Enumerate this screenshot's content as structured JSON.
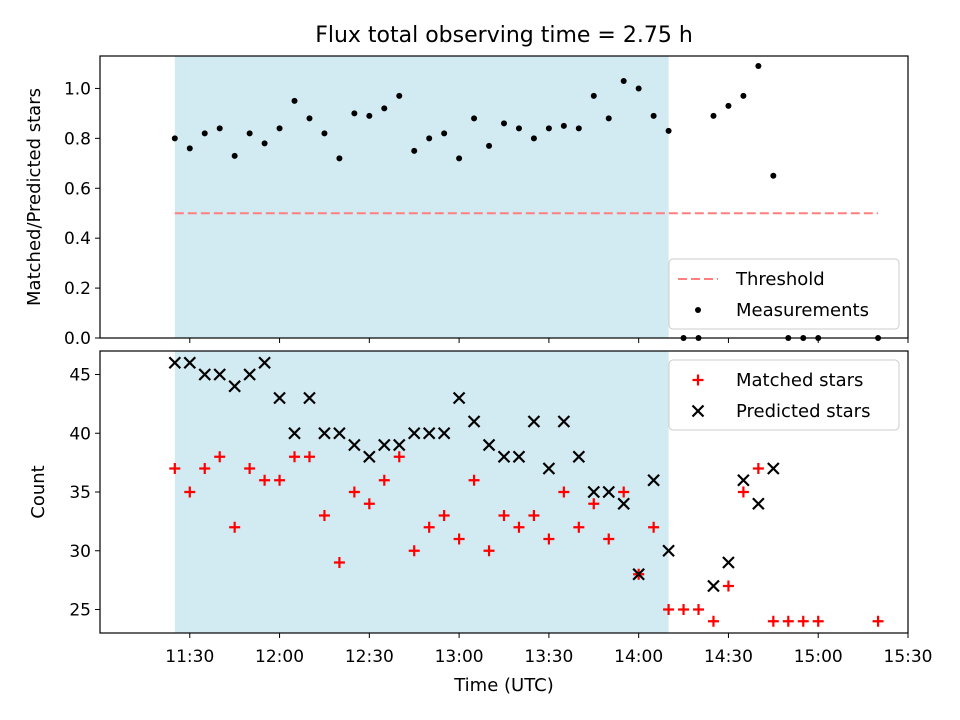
{
  "chart_data": {
    "title": "Flux total observing time = 2.75 h",
    "xlabel": "Time (UTC)",
    "x_ticks": [
      "11:30",
      "12:00",
      "12:30",
      "13:00",
      "13:30",
      "14:00",
      "14:30",
      "15:00",
      "15:30"
    ],
    "shaded_interval": [
      "11:25",
      "14:10"
    ],
    "shade_color": "#add8e6",
    "panels": [
      {
        "type": "scatter",
        "ylabel": "Matched/Predicted stars",
        "ylim": [
          0,
          1.13
        ],
        "y_ticks": [
          "0.0",
          "0.2",
          "0.4",
          "0.6",
          "0.8",
          "1.0"
        ],
        "legend": [
          "Threshold",
          "Measurements"
        ],
        "legend_position": "lower-right",
        "threshold": {
          "name": "Threshold",
          "value": 0.5,
          "x_range": [
            "11:25",
            "15:20"
          ],
          "color": "#ff7f7f"
        },
        "series": [
          {
            "name": "Measurements",
            "marker": "dot",
            "color": "#000000",
            "points": [
              [
                "11:25",
                0.8
              ],
              [
                "11:30",
                0.76
              ],
              [
                "11:35",
                0.82
              ],
              [
                "11:40",
                0.84
              ],
              [
                "11:45",
                0.73
              ],
              [
                "11:50",
                0.82
              ],
              [
                "11:55",
                0.78
              ],
              [
                "12:00",
                0.84
              ],
              [
                "12:05",
                0.95
              ],
              [
                "12:10",
                0.88
              ],
              [
                "12:15",
                0.82
              ],
              [
                "12:20",
                0.72
              ],
              [
                "12:25",
                0.9
              ],
              [
                "12:30",
                0.89
              ],
              [
                "12:35",
                0.92
              ],
              [
                "12:40",
                0.97
              ],
              [
                "12:45",
                0.75
              ],
              [
                "12:50",
                0.8
              ],
              [
                "12:55",
                0.82
              ],
              [
                "13:00",
                0.72
              ],
              [
                "13:05",
                0.88
              ],
              [
                "13:10",
                0.77
              ],
              [
                "13:15",
                0.86
              ],
              [
                "13:20",
                0.84
              ],
              [
                "13:25",
                0.8
              ],
              [
                "13:30",
                0.84
              ],
              [
                "13:35",
                0.85
              ],
              [
                "13:40",
                0.84
              ],
              [
                "13:45",
                0.97
              ],
              [
                "13:50",
                0.88
              ],
              [
                "13:55",
                1.03
              ],
              [
                "14:00",
                1.0
              ],
              [
                "14:05",
                0.89
              ],
              [
                "14:10",
                0.83
              ],
              [
                "14:15",
                0.0
              ],
              [
                "14:20",
                0.0
              ],
              [
                "14:25",
                0.89
              ],
              [
                "14:30",
                0.93
              ],
              [
                "14:35",
                0.97
              ],
              [
                "14:40",
                1.09
              ],
              [
                "14:45",
                0.65
              ],
              [
                "14:50",
                0.0
              ],
              [
                "14:55",
                0.0
              ],
              [
                "15:00",
                0.0
              ],
              [
                "15:20",
                0.0
              ]
            ]
          }
        ]
      },
      {
        "type": "scatter",
        "ylabel": "Count",
        "ylim": [
          23,
          47
        ],
        "y_ticks": [
          "25",
          "30",
          "35",
          "40",
          "45"
        ],
        "legend": [
          "Matched stars",
          "Predicted stars"
        ],
        "legend_position": "upper-right",
        "series": [
          {
            "name": "Matched stars",
            "marker": "plus",
            "color": "#ff0000",
            "points": [
              [
                "11:25",
                37
              ],
              [
                "11:30",
                35
              ],
              [
                "11:35",
                37
              ],
              [
                "11:40",
                38
              ],
              [
                "11:45",
                32
              ],
              [
                "11:50",
                37
              ],
              [
                "11:55",
                36
              ],
              [
                "12:00",
                36
              ],
              [
                "12:05",
                38
              ],
              [
                "12:10",
                38
              ],
              [
                "12:15",
                33
              ],
              [
                "12:20",
                29
              ],
              [
                "12:25",
                35
              ],
              [
                "12:30",
                34
              ],
              [
                "12:35",
                36
              ],
              [
                "12:40",
                38
              ],
              [
                "12:45",
                30
              ],
              [
                "12:50",
                32
              ],
              [
                "12:55",
                33
              ],
              [
                "13:00",
                31
              ],
              [
                "13:05",
                36
              ],
              [
                "13:10",
                30
              ],
              [
                "13:15",
                33
              ],
              [
                "13:20",
                32
              ],
              [
                "13:25",
                33
              ],
              [
                "13:30",
                31
              ],
              [
                "13:35",
                35
              ],
              [
                "13:40",
                32
              ],
              [
                "13:45",
                34
              ],
              [
                "13:50",
                31
              ],
              [
                "13:55",
                35
              ],
              [
                "14:00",
                28
              ],
              [
                "14:05",
                32
              ],
              [
                "14:10",
                25
              ],
              [
                "14:15",
                25
              ],
              [
                "14:20",
                25
              ],
              [
                "14:25",
                24
              ],
              [
                "14:30",
                27
              ],
              [
                "14:35",
                35
              ],
              [
                "14:40",
                37
              ],
              [
                "14:45",
                24
              ],
              [
                "14:50",
                24
              ],
              [
                "14:55",
                24
              ],
              [
                "15:00",
                24
              ],
              [
                "15:20",
                24
              ]
            ]
          },
          {
            "name": "Predicted stars",
            "marker": "x",
            "color": "#000000",
            "points": [
              [
                "11:25",
                46
              ],
              [
                "11:30",
                46
              ],
              [
                "11:35",
                45
              ],
              [
                "11:40",
                45
              ],
              [
                "11:45",
                44
              ],
              [
                "11:50",
                45
              ],
              [
                "11:55",
                46
              ],
              [
                "12:00",
                43
              ],
              [
                "12:05",
                40
              ],
              [
                "12:10",
                43
              ],
              [
                "12:15",
                40
              ],
              [
                "12:20",
                40
              ],
              [
                "12:25",
                39
              ],
              [
                "12:30",
                38
              ],
              [
                "12:35",
                39
              ],
              [
                "12:40",
                39
              ],
              [
                "12:45",
                40
              ],
              [
                "12:50",
                40
              ],
              [
                "12:55",
                40
              ],
              [
                "13:00",
                43
              ],
              [
                "13:05",
                41
              ],
              [
                "13:10",
                39
              ],
              [
                "13:15",
                38
              ],
              [
                "13:20",
                38
              ],
              [
                "13:25",
                41
              ],
              [
                "13:30",
                37
              ],
              [
                "13:35",
                41
              ],
              [
                "13:40",
                38
              ],
              [
                "13:45",
                35
              ],
              [
                "13:50",
                35
              ],
              [
                "13:55",
                34
              ],
              [
                "14:00",
                28
              ],
              [
                "14:05",
                36
              ],
              [
                "14:10",
                30
              ],
              [
                "14:25",
                27
              ],
              [
                "14:30",
                29
              ],
              [
                "14:35",
                36
              ],
              [
                "14:40",
                34
              ],
              [
                "14:45",
                37
              ]
            ]
          }
        ]
      }
    ]
  }
}
